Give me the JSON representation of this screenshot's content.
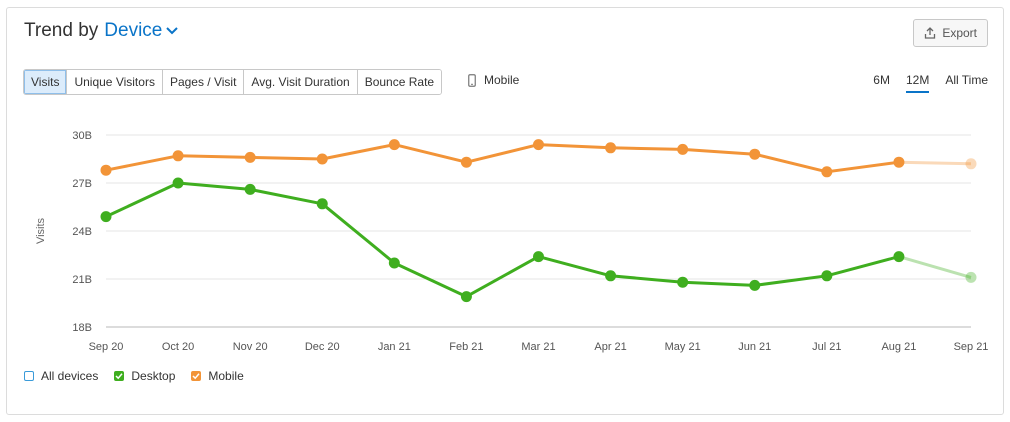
{
  "header": {
    "title_prefix": "Trend by",
    "dimension": "Device"
  },
  "export_label": "Export",
  "metric_tabs": [
    "Visits",
    "Unique Visitors",
    "Pages / Visit",
    "Avg. Visit Duration",
    "Bounce Rate"
  ],
  "active_metric": "Visits",
  "mobile_toggle_label": "Mobile",
  "range_tabs": [
    "6M",
    "12M",
    "All Time"
  ],
  "active_range": "12M",
  "legend": [
    {
      "label": "All devices",
      "checked": false,
      "color": "#3a9bd9"
    },
    {
      "label": "Desktop",
      "checked": true,
      "color": "#3fae1f"
    },
    {
      "label": "Mobile",
      "checked": true,
      "color": "#f29438"
    }
  ],
  "chart_data": {
    "type": "line",
    "ylabel": "Visits",
    "xlabel": "",
    "categories": [
      "Sep 20",
      "Oct 20",
      "Nov 20",
      "Dec 20",
      "Jan 21",
      "Feb 21",
      "Mar 21",
      "Apr 21",
      "May 21",
      "Jun 21",
      "Jul 21",
      "Aug 21",
      "Sep 21"
    ],
    "yticks": [
      18,
      21,
      24,
      27,
      30
    ],
    "ytick_labels": [
      "18B",
      "21B",
      "24B",
      "27B",
      "30B"
    ],
    "ylim": [
      18,
      30
    ],
    "grid": true,
    "legend_placement": "bottom-left",
    "series": [
      {
        "name": "Mobile",
        "color": "#f29438",
        "values": [
          27.8,
          28.7,
          28.6,
          28.5,
          29.4,
          28.3,
          29.4,
          29.2,
          29.1,
          28.8,
          27.7,
          28.3,
          28.2
        ],
        "partial_last": true
      },
      {
        "name": "Desktop",
        "color": "#3fae1f",
        "values": [
          24.9,
          27.0,
          26.6,
          25.7,
          22.0,
          19.9,
          22.4,
          21.2,
          20.8,
          20.6,
          21.2,
          22.4,
          21.1
        ],
        "partial_last": true
      }
    ]
  }
}
